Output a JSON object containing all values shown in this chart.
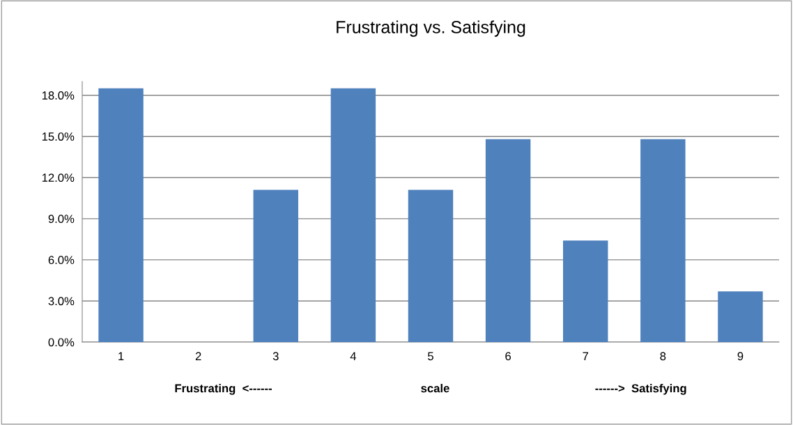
{
  "chart_data": {
    "type": "bar",
    "title": "Frustrating vs. Satisfying",
    "xlabel": "Frustrating  <------                                              scale                                             ------>  Satisfying",
    "categories": [
      "1",
      "2",
      "3",
      "4",
      "5",
      "6",
      "7",
      "8",
      "9"
    ],
    "values": [
      18.5,
      0,
      11.1,
      18.5,
      11.1,
      14.8,
      7.4,
      14.8,
      3.7
    ],
    "color": "#4f81bd",
    "ylim": [
      0,
      19
    ],
    "yticks": [
      {
        "value": 0,
        "label": "0.0%"
      },
      {
        "value": 3,
        "label": "3.0%"
      },
      {
        "value": 6,
        "label": "6.0%"
      },
      {
        "value": 9,
        "label": "9.0%"
      },
      {
        "value": 12,
        "label": "12.0%"
      },
      {
        "value": 15,
        "label": "15.0%"
      },
      {
        "value": 18,
        "label": "18.0%"
      }
    ],
    "grid": "y",
    "legend": false
  }
}
